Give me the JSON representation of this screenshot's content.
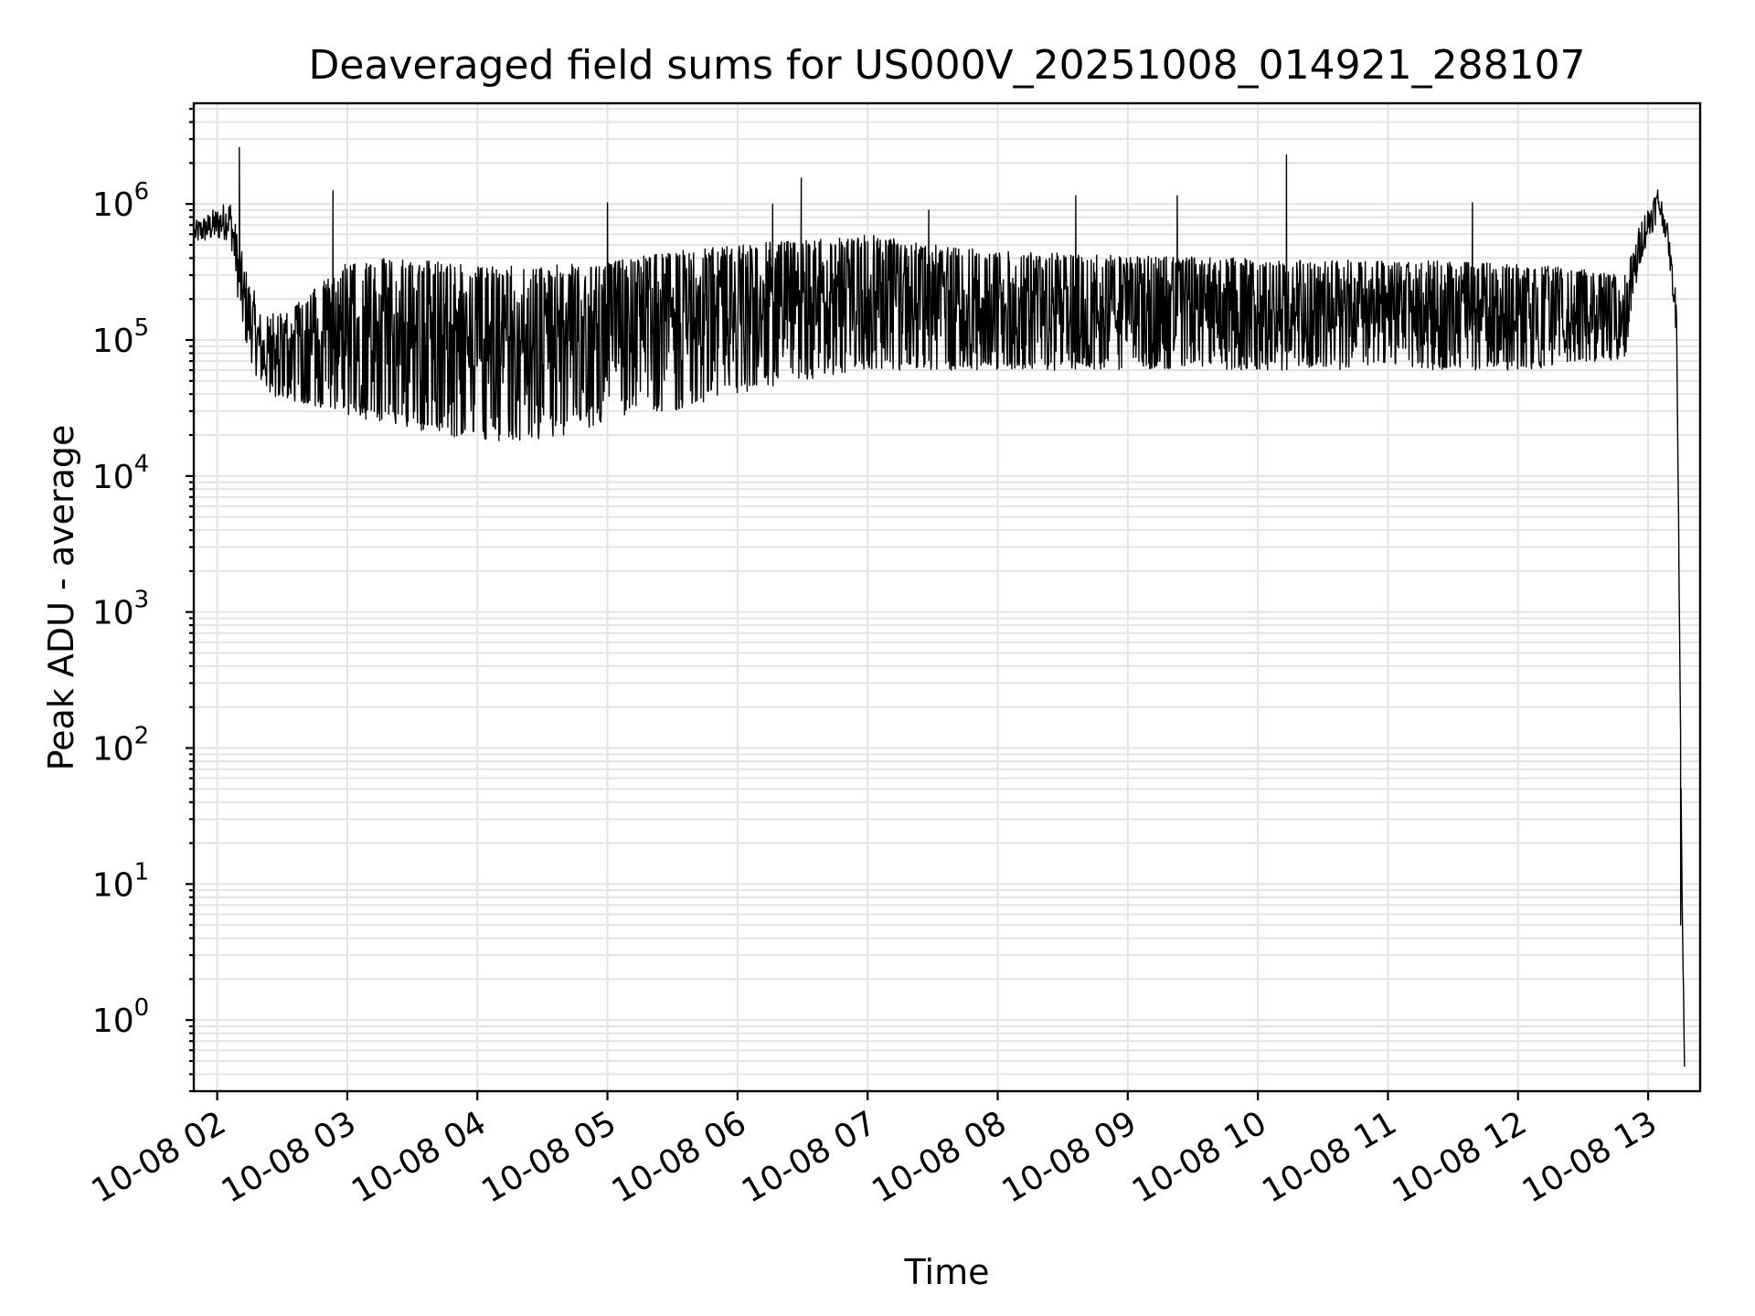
{
  "chart_data": {
    "type": "line",
    "title": "Deaveraged field sums for US000V_20251008_014921_288107",
    "xlabel": "Time",
    "ylabel": "Peak ADU - average",
    "yscale": "log",
    "ylim": [
      0.3,
      5500000
    ],
    "xlim_hours": [
      1.82,
      13.4
    ],
    "grid": true,
    "x_ticks": [
      {
        "hour": 2,
        "label": "10-08 02"
      },
      {
        "hour": 3,
        "label": "10-08 03"
      },
      {
        "hour": 4,
        "label": "10-08 04"
      },
      {
        "hour": 5,
        "label": "10-08 05"
      },
      {
        "hour": 6,
        "label": "10-08 06"
      },
      {
        "hour": 7,
        "label": "10-08 07"
      },
      {
        "hour": 8,
        "label": "10-08 08"
      },
      {
        "hour": 9,
        "label": "10-08 09"
      },
      {
        "hour": 10,
        "label": "10-08 10"
      },
      {
        "hour": 11,
        "label": "10-08 11"
      },
      {
        "hour": 12,
        "label": "10-08 12"
      },
      {
        "hour": 13,
        "label": "10-08 13"
      }
    ],
    "y_ticks": [
      {
        "value": 1,
        "base": "10",
        "exp": "0"
      },
      {
        "value": 10,
        "base": "10",
        "exp": "1"
      },
      {
        "value": 100,
        "base": "10",
        "exp": "2"
      },
      {
        "value": 1000,
        "base": "10",
        "exp": "3"
      },
      {
        "value": 10000,
        "base": "10",
        "exp": "4"
      },
      {
        "value": 100000,
        "base": "10",
        "exp": "5"
      },
      {
        "value": 1000000,
        "base": "10",
        "exp": "6"
      }
    ],
    "series": [
      {
        "name": "deaveraged field sum",
        "color": "#000000",
        "envelope": [
          {
            "hour": 1.83,
            "low": 500000,
            "high": 750000
          },
          {
            "hour": 2.1,
            "low": 550000,
            "high": 1100000
          },
          {
            "hour": 2.2,
            "low": 100000,
            "high": 400000
          },
          {
            "hour": 2.35,
            "low": 40000,
            "high": 150000
          },
          {
            "hour": 2.6,
            "low": 35000,
            "high": 180000
          },
          {
            "hour": 3.0,
            "low": 28000,
            "high": 400000
          },
          {
            "hour": 3.5,
            "low": 22000,
            "high": 400000
          },
          {
            "hour": 4.0,
            "low": 18000,
            "high": 350000
          },
          {
            "hour": 4.5,
            "low": 18000,
            "high": 350000
          },
          {
            "hour": 5.0,
            "low": 25000,
            "high": 380000
          },
          {
            "hour": 5.5,
            "low": 30000,
            "high": 450000
          },
          {
            "hour": 6.0,
            "low": 40000,
            "high": 500000
          },
          {
            "hour": 6.5,
            "low": 50000,
            "high": 550000
          },
          {
            "hour": 7.0,
            "low": 60000,
            "high": 600000
          },
          {
            "hour": 7.5,
            "low": 60000,
            "high": 500000
          },
          {
            "hour": 8.0,
            "low": 60000,
            "high": 450000
          },
          {
            "hour": 9.0,
            "low": 60000,
            "high": 420000
          },
          {
            "hour": 10.0,
            "low": 60000,
            "high": 400000
          },
          {
            "hour": 11.0,
            "low": 60000,
            "high": 380000
          },
          {
            "hour": 12.0,
            "low": 60000,
            "high": 380000
          },
          {
            "hour": 12.82,
            "low": 70000,
            "high": 300000
          },
          {
            "hour": 12.95,
            "low": 400000,
            "high": 800000
          },
          {
            "hour": 13.08,
            "low": 800000,
            "high": 1400000
          },
          {
            "hour": 13.15,
            "low": 500000,
            "high": 700000
          },
          {
            "hour": 13.22,
            "low": 100000,
            "high": 200000
          },
          {
            "hour": 13.26,
            "low": 10,
            "high": 10
          },
          {
            "hour": 13.28,
            "low": 0.3,
            "high": 0.6
          }
        ],
        "spikes": [
          {
            "hour": 2.17,
            "value": 2600000
          },
          {
            "hour": 2.89,
            "value": 1250000
          },
          {
            "hour": 5.0,
            "value": 1020000
          },
          {
            "hour": 6.27,
            "value": 1000000
          },
          {
            "hour": 6.49,
            "value": 1550000
          },
          {
            "hour": 7.47,
            "value": 900000
          },
          {
            "hour": 8.6,
            "value": 1150000
          },
          {
            "hour": 9.38,
            "value": 1150000
          },
          {
            "hour": 10.22,
            "value": 2300000
          },
          {
            "hour": 11.65,
            "value": 1020000
          },
          {
            "hour": 13.25,
            "value": 5
          }
        ]
      }
    ]
  }
}
